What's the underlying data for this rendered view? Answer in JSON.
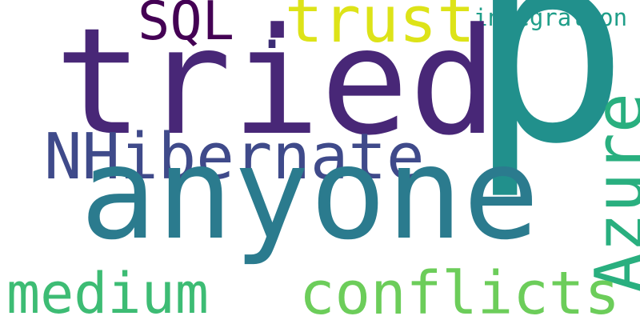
{
  "words": [
    {
      "id": "tried",
      "text": "tried",
      "color": "#482777"
    },
    {
      "id": "p",
      "text": "p",
      "color": "#21908c"
    },
    {
      "id": "anyone",
      "text": "anyone",
      "color": "#2b7b8e"
    },
    {
      "id": "nhibernate",
      "text": "NHibernate",
      "color": "#3f4a8a"
    },
    {
      "id": "azure",
      "text": "Azure",
      "color": "#29af7f"
    },
    {
      "id": "conflicts",
      "text": "conflicts",
      "color": "#6ccd5a"
    },
    {
      "id": "medium",
      "text": "medium",
      "color": "#3dbc74"
    },
    {
      "id": "trust",
      "text": "trust",
      "color": "#dde318"
    },
    {
      "id": "sql",
      "text": "SQL",
      "color": "#440154"
    },
    {
      "id": "integration",
      "text": "integration",
      "color": "#1f9e89"
    },
    {
      "id": "dot",
      "text": ".",
      "color": "#3b2c74"
    }
  ]
}
